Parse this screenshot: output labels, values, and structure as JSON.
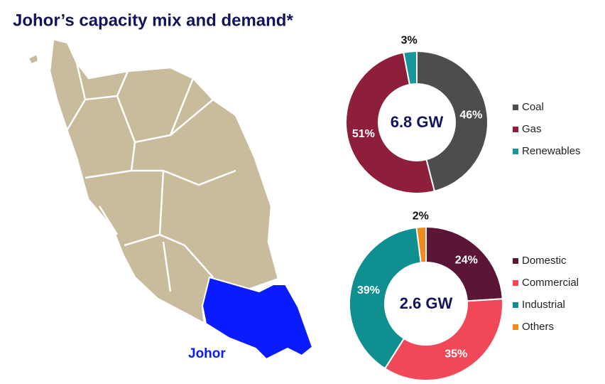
{
  "title": "Johor’s capacity mix and demand*",
  "map": {
    "label": "Johor"
  },
  "chart_data": [
    {
      "type": "pie",
      "center_label": "6.8 GW",
      "categories": [
        "Coal",
        "Gas",
        "Renewables"
      ],
      "values": [
        46,
        51,
        3
      ],
      "value_labels": [
        "46%",
        "51%",
        "3%"
      ],
      "colors": [
        "#4d4d4d",
        "#8e1f3b",
        "#17979b"
      ]
    },
    {
      "type": "pie",
      "center_label": "2.6 GW",
      "categories": [
        "Domestic",
        "Commercial",
        "Industrial",
        "Others"
      ],
      "values": [
        24,
        35,
        39,
        2
      ],
      "value_labels": [
        "24%",
        "35%",
        "39%",
        "2%"
      ],
      "colors": [
        "#5a1537",
        "#f04859",
        "#0f8f8f",
        "#f08a1c"
      ]
    }
  ]
}
